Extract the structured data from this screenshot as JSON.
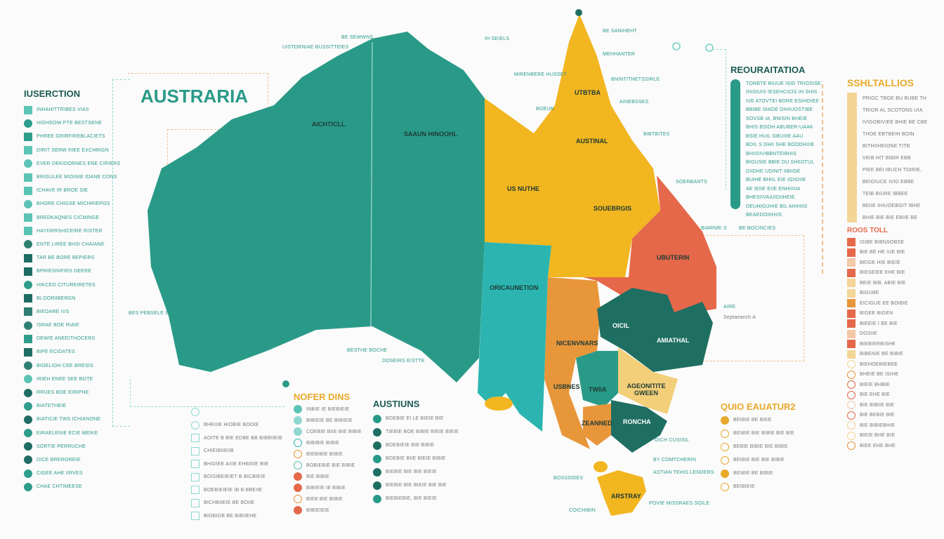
{
  "title": "AUSTRARIA",
  "left_legend": {
    "heading": "IUSERCTION",
    "items": [
      "INHAHITTRIBES VIAS",
      "HIGHSOW PTE BESTSENE",
      "PHREE GRIRFIREBLACIETS",
      "DIRIT SERW RIEE EXCHRIGN",
      "EVER DEKIDORNES ENE CIRIERS",
      "BRIGULEE MIDINIE IDANE CONS",
      "ICHAVE IR BROE SIE",
      "BHORE CHIGSE MICHRIEPOS",
      "BREDKAQNES CICMINGE",
      "HAYDRRSHICEIRE RISTER",
      "ENTE LIREE BHSI CHAIANE",
      "TAR BE BORE BEPIERS",
      "BPRIESNIFIRS DEERE",
      "HIKCEO CITUREIRETES",
      "BLOORIIBERGN",
      "BIEOARE IVS",
      "ISRAE BOE RIAIE",
      "DEWIE ANEEITHOCERS",
      "BIPE ECIDATES",
      "BIOELIOH CEE BRESIS",
      "IRIEH ENEE SEE BOTE",
      "RRUES BOE EIRIPHE",
      "BIATETHEIE",
      "BIATICIE TWS ICHIANONE",
      "EIRAELENIE ECIE MEIKE",
      "SORTIE PERRUCHE",
      "DICE BREROREIE",
      "CIGEE AHE IIRVES",
      "CHAE CHTIMEESE"
    ],
    "colors": [
      "#5cc4b4",
      "#2e9d8b",
      "#2e9d8b",
      "#5cc4b4",
      "#5cc4b4",
      "#5cc4b4",
      "#5cc4b4",
      "#5cc4b4",
      "#5cc4b4",
      "#5cc4b4",
      "#2e7f72",
      "#1f6d62",
      "#1f6d62",
      "#2e9d8b",
      "#1f6d62",
      "#2e7f72",
      "#2e7f72",
      "#2e9d8b",
      "#1f6d62",
      "#2e7f72",
      "#5cc4b4",
      "#1f6d62",
      "#2e9d8b",
      "#1f6d62",
      "#2e9d8b",
      "#1f6d62",
      "#1f6d62",
      "#2e9d8b",
      "#2e9d8b"
    ]
  },
  "map_labels": {
    "wa": "AICHTICLL",
    "nt": "SAAUN HINOOHL",
    "qld_top": "UTBTBA",
    "qld_mid": "AUSTINAL",
    "qld_w": "US NUTHE",
    "qld_s": "SOUEBRGIS",
    "sa": "ORICAUNETION",
    "red": "UBUTERIN",
    "nsw": "AMIATHAL",
    "vic_w": "NICENVNARS",
    "oil": "OICIL",
    "orange_s": "USBNES",
    "teal_s": "TWIIA",
    "ly": "AGEONITITE GWEEN",
    "vic": "ZEANNED",
    "dark": "RONCHA",
    "tas": "ARSTRAY"
  },
  "callouts": [
    "BE SEWWNS",
    "UISTORNIAE BUSSITTEIES",
    "IH SEIELS",
    "BE SANIHEHT",
    "MEHHANTER",
    "MIRENBERE HUSSET",
    "BNINTITHETSSIRLE",
    "AINEBSSES",
    "BOEUN",
    "BIBTBITES",
    "SOERBANTS",
    "BIARNRI S",
    "BE BOCINCIES",
    "AIRE",
    "Septaeanch A",
    "BES PEBSELE STINITE BBB",
    "BESTHE BOCHE",
    "DOSEIRS EISTTE",
    "OICH CUSISIL",
    "BY COMTCHERIN",
    "ASTIAN TEHIS LENDERS",
    "BOSSSIDES",
    "COICHIBIN",
    "POVIE MISSRAES SOILE"
  ],
  "registration": {
    "heading": "REOURAITATIOA",
    "items": [
      "TORBTE BIUUE ISID TRIOSISE",
      "INISIUIS IESEHCICIS IH SHIS",
      "IVE ATOVTEI BORE ESIHOIEE",
      "BBIBE SHIDE DIHIUOSTIBE",
      "SOVSB IA, BNISIN BHEIE",
      "BHIS BSIDH ABUBER-UAAK",
      "BSIE HUIL GBUIIIE AAU",
      "BDIL S DHII SHE BOODHIIIE",
      "BHIISIVIBBNTEIBHIS",
      "BIGUSIE BBIE DU SHIIOTUL",
      "DIIDHE UDINIT IIBIIGE",
      "BUIHE BHIIL EIE IGIIDIIE",
      "AE IEIIE EIIE ENHIIIIIA",
      "BHESIIVAIUIDIIHEIE",
      "DEUHIGUHIE BIL AHIHIIS",
      "BEAEDOIIIHIIS"
    ]
  },
  "stations": {
    "heading": "SSHLTALLIOS",
    "items": [
      "PRIOC TBGE BU BUBE TH",
      "TRIOR AL SCOTONS UIA",
      "IVIGOBIVIEE BHIE BE CBE",
      "THOE EBTBEIH BOIN",
      "BITHSHEIONE TITB",
      "VEIB HIT BIBIR EBB",
      "PIEE BEI IBUCH TOIRIE,",
      "BEIOIUCE IVIO EBBE",
      "TEIB BIURE IBBEE",
      "BEIIE IHIUOEBGIT IBHE",
      "BHIE BIE BIE EBIIE BE"
    ],
    "sub_heading": "ROOS TOLL",
    "sub_items": [
      "ISIBE BIBNSOBSE",
      "BIE BE HE IUE BIE",
      "BEIGE HIE BIEIE",
      "BIESEIEE EHE BIE",
      "BEIE BIB, ABIE BIE",
      "BIGUBE",
      "EICIGUE EE BOIBIE",
      "BIGEE BIGEN",
      "BIEEIE I BE BIE",
      "DOSIIE",
      "BIEBIERBISHE",
      "BIBENIE BE BIBIE",
      "BIEHOEBIEBEE",
      "BHEIE BE ISIHE",
      "BIEIE BHBIE",
      "BIE EHE BIE",
      "BIE BIBIIE BIE",
      "BIE BEBIE BIE",
      "BIE BIBIEBHIE",
      "BIEIE BHE BIE",
      "BIEE EHE BHE"
    ]
  },
  "legend_shapes": {
    "items": [
      "",
      "BHEIIIE HIOBIE BOOIE",
      "AOITE B BIE EDBE BB BIBBIIEIB",
      "CHIEIBIIEIIB",
      "BHIDIEE AIIIE EHBIIIIE BIB",
      "BOISIBEIEIET B BICBIEIE",
      "BOEBIEIEIE IB B BBEIIE",
      "BICHBIIEIE BE BOIIE",
      "BIOBIOB BE BIBIIEHE"
    ]
  },
  "legend_notes": {
    "heading": "NOFER DINS",
    "items": [
      "INBIE IE BIEBIEIE",
      "BIBIEIE BE BIBIEIE",
      "COEBIE BIIE BIE BIBIE",
      "BIBIBIE BIBIE",
      "BIEBIBIE BIBIE",
      "BOBIEBIE BIE BIBIE",
      "BIE BIBIE",
      "BIBIEIE IE BIBIE",
      "BIEB BIE BIBIE",
      "BIBIEIEIE"
    ]
  },
  "legend_austins": {
    "heading": "AUSTIUNS",
    "items": [
      "BOEBIE EI LE BIEIE BIE",
      "TIEBIE BOE BIBIE BIEIE BIEIE",
      "BOEBIEIE BIE BIBIE",
      "BOEBIE BIIE BIEIE BIBIE",
      "BIEBIE BIE BIE BIEIE",
      "BIEBIE BIE BIEIE BIE BIE",
      "BIEBIEBIE, BIE BIEIE"
    ]
  },
  "legend_quo": {
    "heading": "QUIO EAUATUR2",
    "items": [
      "BEIBIE BE BIEE",
      "BEIBIE BIE BIBIE BIE BIE",
      "BEBIE BIBIE BIE BIBIE",
      "BEIBIE BIE BIE BIBIE",
      "BEIBIE BE BIBIE",
      "BEIBIEIE"
    ]
  },
  "colors": {
    "teal": "#2a9a88",
    "yellow": "#f2b620",
    "turquoise": "#2cb5b0",
    "orange": "#e8963a",
    "red": "#e5684a",
    "dark_teal": "#1f6e62",
    "light_yellow": "#f3cf7a"
  }
}
